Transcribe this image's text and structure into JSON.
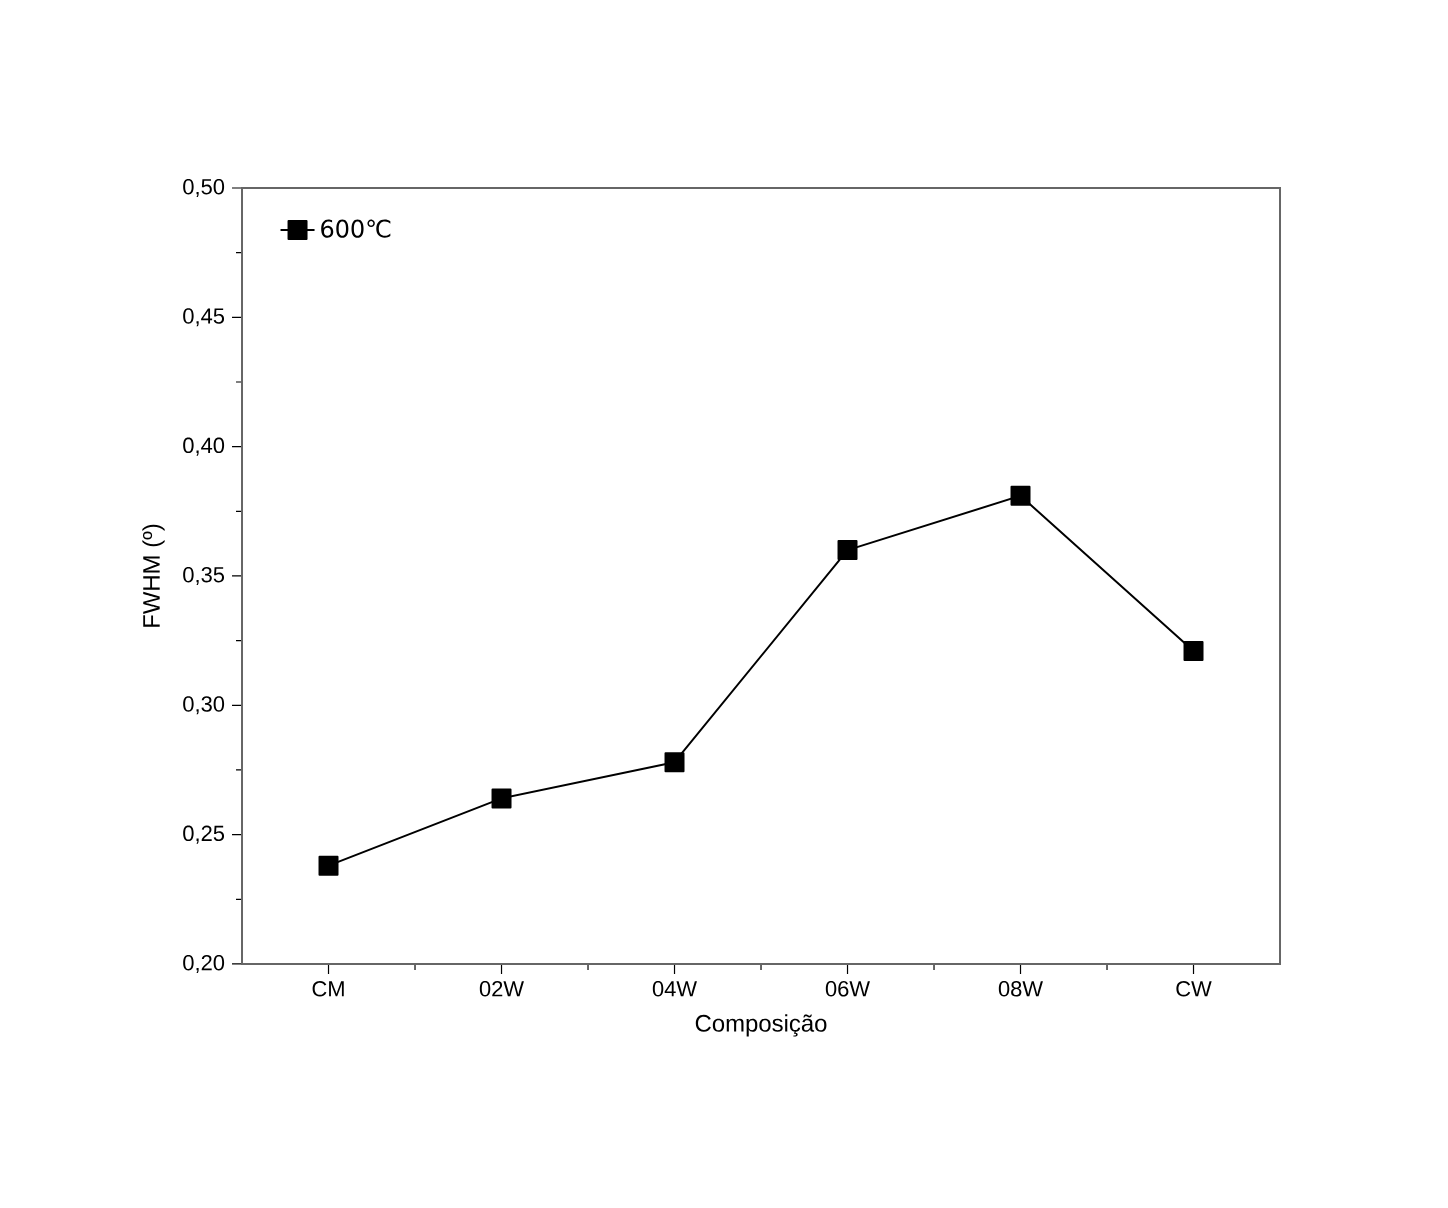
{
  "chart_data": {
    "type": "line",
    "xlabel": "Composição",
    "ylabel": "FWHM (º)",
    "categories": [
      "CM",
      "02W",
      "04W",
      "06W",
      "08W",
      "CW"
    ],
    "series": [
      {
        "name": "600℃",
        "color": "#000000",
        "values": [
          0.238,
          0.264,
          0.278,
          0.36,
          0.381,
          0.321
        ]
      }
    ],
    "ylim": [
      0.2,
      0.5
    ],
    "yticks": [
      {
        "value": 0.2,
        "label": "0,20"
      },
      {
        "value": 0.25,
        "label": "0,25"
      },
      {
        "value": 0.3,
        "label": "0,30"
      },
      {
        "value": 0.35,
        "label": "0,35"
      },
      {
        "value": 0.4,
        "label": "0,40"
      },
      {
        "value": 0.45,
        "label": "0,45"
      },
      {
        "value": 0.5,
        "label": "0,50"
      }
    ],
    "legend": "top left",
    "marker": "square",
    "line_style": "solid"
  }
}
